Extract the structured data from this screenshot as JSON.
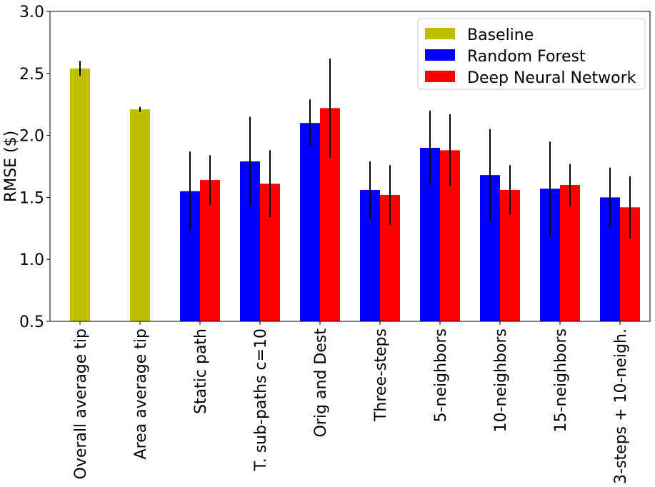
{
  "chart_data": {
    "type": "bar",
    "title": "",
    "xlabel": "",
    "ylabel": "RMSE ($)",
    "ylim": [
      0.5,
      3.0
    ],
    "yticks": [
      "0.5",
      "1.0",
      "1.5",
      "2.0",
      "2.5",
      "3.0"
    ],
    "grid": false,
    "legend_position": "top-right",
    "categories": [
      "Overall average tip",
      "Area average tip",
      "Static path",
      "T. sub-paths c=10",
      "Orig and Dest",
      "Three-steps",
      "5-neighbors",
      "10-neighbors",
      "15-neighbors",
      "3-steps + 10-neigh."
    ],
    "series": [
      {
        "name": "Baseline",
        "color": "#bfbf00",
        "values": [
          2.54,
          2.21,
          null,
          null,
          null,
          null,
          null,
          null,
          null,
          null
        ],
        "errors": [
          0.06,
          0.02,
          null,
          null,
          null,
          null,
          null,
          null,
          null,
          null
        ]
      },
      {
        "name": "Random Forest",
        "color": "#0000ff",
        "values": [
          null,
          null,
          1.55,
          1.79,
          2.1,
          1.56,
          1.9,
          1.68,
          1.57,
          1.5
        ],
        "errors": [
          null,
          null,
          0.32,
          0.36,
          0.19,
          0.23,
          0.3,
          0.37,
          0.38,
          0.24
        ]
      },
      {
        "name": "Deep Neural Network",
        "color": "#ff0000",
        "values": [
          null,
          null,
          1.64,
          1.61,
          2.22,
          1.52,
          1.88,
          1.56,
          1.6,
          1.42
        ],
        "errors": [
          null,
          null,
          0.2,
          0.27,
          0.4,
          0.24,
          0.29,
          0.2,
          0.17,
          0.25
        ]
      }
    ]
  }
}
